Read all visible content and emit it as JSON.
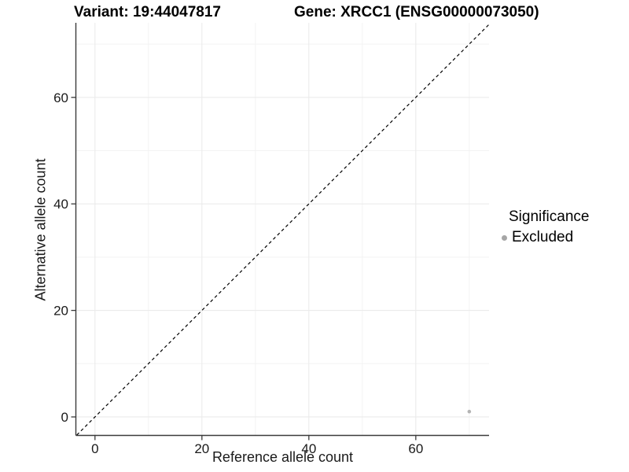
{
  "titles": {
    "variant": "Variant: 19:44047817",
    "gene": "Gene: XRCC1 (ENSG00000073050)"
  },
  "axes": {
    "x_label": "Reference allele count",
    "y_label": "Alternative allele count"
  },
  "legend": {
    "title": "Significance",
    "items": [
      {
        "label": "Excluded",
        "marker": "circle",
        "color": "#a6a6a6"
      }
    ]
  },
  "style": {
    "axis_line_color": "#3a3a3a",
    "tick_color": "#3a3a3a",
    "tick_label_color": "#1a1a1a",
    "grid_major_color": "#ebebeb",
    "grid_minor_color": "#f3f3f3",
    "reference_line_color": "#000000",
    "point_color": "#b4b4b4",
    "background": "#ffffff"
  },
  "chart_data": {
    "type": "scatter",
    "title": "",
    "xlabel": "Reference allele count",
    "ylabel": "Alternative allele count",
    "xlim": [
      -3.5,
      73.7
    ],
    "ylim": [
      -3.4,
      74.0
    ],
    "x_major_ticks": [
      0,
      20,
      40,
      60
    ],
    "y_major_ticks": [
      0,
      20,
      40,
      60
    ],
    "x_minor_gridlines": [
      10,
      30,
      50,
      70
    ],
    "y_minor_gridlines": [
      10,
      30,
      50,
      70
    ],
    "grid": true,
    "legend_position": "right",
    "series": [
      {
        "name": "Excluded",
        "color": "#b4b4b4",
        "point_radius": 2.3,
        "points": [
          {
            "x": 70,
            "y": 1
          }
        ]
      }
    ],
    "reference_line": {
      "kind": "identity",
      "style": "dashed",
      "from": [
        -3.4,
        -3.4
      ],
      "to": [
        73.7,
        73.7
      ],
      "color": "#000000"
    }
  }
}
